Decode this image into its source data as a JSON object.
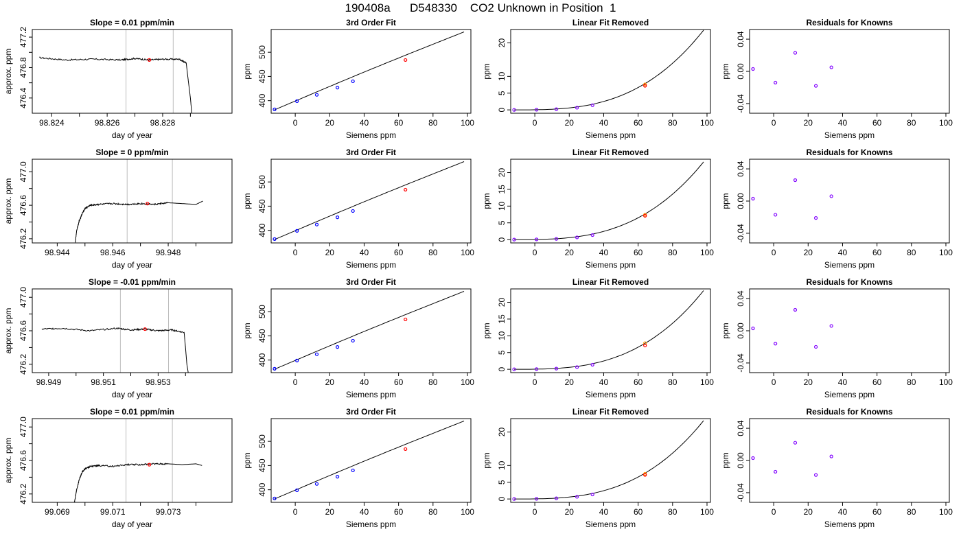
{
  "page": {
    "title": "190408a      D548330    CO2 Unknown in Position  1"
  },
  "colors": {
    "trace": "#000000",
    "marker_red": "#ff0000",
    "marker_orange": "#ff9900",
    "known_points": "#0000ff",
    "residual_points": "#8000ff",
    "window_lines": "#bbbbbb"
  },
  "chart_data": [
    {
      "type": "line",
      "row": 1,
      "title": "Slope =  0.01  ppm/min",
      "xlabel": "day of year",
      "ylabel": "approx. ppm",
      "xlim": [
        98.8233,
        98.8305
      ],
      "ylim": [
        476.2,
        477.3
      ],
      "xticks": [
        98.824,
        98.825,
        98.826,
        98.827,
        98.828,
        98.829
      ],
      "xtick_labels": [
        "98.824",
        "",
        "98.826",
        "",
        "98.828",
        ""
      ],
      "yticks": [
        476.4,
        476.6,
        476.8,
        477.0,
        477.2
      ],
      "ytick_labels": [
        "476.4",
        "",
        "476.8",
        "",
        "477.2"
      ],
      "vlines": [
        98.82668,
        98.82838
      ],
      "series": [
        {
          "x": [
            98.82355,
            98.8245,
            98.8255,
            98.8265,
            98.827,
            98.8275,
            98.828,
            98.8286,
            98.82885,
            98.8289,
            98.829,
            98.8291
          ],
          "y": [
            476.93,
            476.9,
            476.91,
            476.9,
            476.92,
            476.9,
            476.91,
            476.91,
            476.86,
            476.7,
            476.4,
            476.0
          ]
        }
      ],
      "marker": {
        "x": 98.82752,
        "y": 476.9
      }
    },
    {
      "type": "line",
      "row": 1,
      "title": "3rd Order Fit",
      "xlabel": "Siemens ppm",
      "ylabel": "ppm",
      "xlim": [
        -14,
        102
      ],
      "ylim": [
        374,
        547
      ],
      "xticks": [
        0,
        20,
        40,
        60,
        80,
        100
      ],
      "xtick_labels": [
        "0",
        "20",
        "40",
        "60",
        "80",
        "100"
      ],
      "yticks": [
        400,
        450,
        500
      ],
      "ytick_labels": [
        "400",
        "450",
        "500"
      ],
      "fit": {
        "x0": -12,
        "x1": 98,
        "y0": 381,
        "y1": 542,
        "bend": 0.012
      },
      "knowns": {
        "x": [
          -12,
          1,
          12.5,
          24.5,
          33.5
        ],
        "y": [
          382,
          399,
          412,
          427,
          440
        ]
      },
      "unknown": {
        "x": 64,
        "y": 484
      }
    },
    {
      "type": "line",
      "row": 1,
      "title": "Linear Fit Removed",
      "xlabel": "Siemens ppm",
      "ylabel": "ppm",
      "xlim": [
        -14,
        102
      ],
      "ylim": [
        -1,
        24
      ],
      "xticks": [
        0,
        20,
        40,
        60,
        80,
        100
      ],
      "xtick_labels": [
        "0",
        "20",
        "40",
        "60",
        "80",
        "100"
      ],
      "yticks": [
        0,
        5,
        10,
        20
      ],
      "ytick_labels": [
        "0",
        "5",
        "10",
        "20"
      ],
      "fit": {
        "x0": -12,
        "x1": 98,
        "ymax": 23.8
      },
      "knowns": {
        "x": [
          -12,
          1,
          12.5,
          24.5,
          33.5
        ],
        "y": [
          0.0,
          0.05,
          0.2,
          0.65,
          1.4
        ]
      },
      "unknown": {
        "x": 64,
        "y": [
          7.2,
          7.6
        ]
      }
    },
    {
      "type": "scatter",
      "row": 1,
      "title": "Residuals for Knowns",
      "xlabel": "Siemens ppm",
      "ylabel": "ppm",
      "xlim": [
        -14,
        102
      ],
      "ylim": [
        -0.052,
        0.052
      ],
      "xticks": [
        0,
        20,
        40,
        60,
        80,
        100
      ],
      "xtick_labels": [
        "0",
        "20",
        "40",
        "60",
        "80",
        "100"
      ],
      "yticks": [
        -0.04,
        0.0,
        0.04
      ],
      "ytick_labels": [
        "-0.04",
        "0.00",
        "0.04"
      ],
      "points": {
        "x": [
          -12,
          1,
          12.5,
          24.5,
          33.5
        ],
        "y": [
          0.003,
          -0.014,
          0.023,
          -0.018,
          0.005
        ]
      }
    },
    {
      "type": "line",
      "row": 2,
      "title": "Slope =  0  ppm/min",
      "xlabel": "day of year",
      "ylabel": "approx. ppm",
      "xlim": [
        98.9431,
        98.9503
      ],
      "ylim": [
        476.15,
        477.15
      ],
      "xticks": [
        98.944,
        98.945,
        98.946,
        98.947,
        98.948,
        98.949
      ],
      "xtick_labels": [
        "98.944",
        "",
        "98.946",
        "",
        "98.948",
        ""
      ],
      "yticks": [
        476.2,
        476.4,
        476.6,
        476.8,
        477.0
      ],
      "ytick_labels": [
        "476.2",
        "",
        "476.6",
        "",
        "477.0"
      ],
      "vlines": [
        98.94652,
        98.94815
      ],
      "series": [
        {
          "x": [
            98.94465,
            98.9447,
            98.9448,
            98.9449,
            98.945,
            98.9452,
            98.9455,
            98.946,
            98.9465,
            98.947,
            98.9475,
            98.948,
            98.9485,
            98.949,
            98.94925
          ],
          "y": [
            476.15,
            476.3,
            476.42,
            476.5,
            476.56,
            476.6,
            476.61,
            476.62,
            476.61,
            476.62,
            476.61,
            476.63,
            476.62,
            476.61,
            476.65
          ]
        }
      ],
      "marker": {
        "x": 98.94725,
        "y": 476.62
      }
    },
    {
      "type": "line",
      "row": 2,
      "title": "3rd Order Fit",
      "xlabel": "Siemens ppm",
      "ylabel": "ppm",
      "xlim": [
        -14,
        102
      ],
      "ylim": [
        374,
        547
      ],
      "xticks": [
        0,
        20,
        40,
        60,
        80,
        100
      ],
      "xtick_labels": [
        "0",
        "20",
        "40",
        "60",
        "80",
        "100"
      ],
      "yticks": [
        400,
        450,
        500
      ],
      "ytick_labels": [
        "400",
        "450",
        "500"
      ],
      "fit": {
        "x0": -12,
        "x1": 98,
        "y0": 381,
        "y1": 542,
        "bend": 0.012
      },
      "knowns": {
        "x": [
          -12,
          1,
          12.5,
          24.5,
          33.5
        ],
        "y": [
          382,
          399,
          412,
          427,
          440
        ]
      },
      "unknown": {
        "x": 64,
        "y": 484
      }
    },
    {
      "type": "line",
      "row": 2,
      "title": "Linear Fit Removed",
      "xlabel": "Siemens ppm",
      "ylabel": "ppm",
      "xlim": [
        -14,
        102
      ],
      "ylim": [
        -1,
        24
      ],
      "xticks": [
        0,
        20,
        40,
        60,
        80,
        100
      ],
      "xtick_labels": [
        "0",
        "20",
        "40",
        "60",
        "80",
        "100"
      ],
      "yticks": [
        0,
        5,
        10,
        15,
        20
      ],
      "ytick_labels": [
        "0",
        "5",
        "10",
        "15",
        "20"
      ],
      "fit": {
        "x0": -12,
        "x1": 98,
        "ymax": 23.2
      },
      "knowns": {
        "x": [
          -12,
          1,
          12.5,
          24.5,
          33.5
        ],
        "y": [
          0.0,
          0.05,
          0.2,
          0.65,
          1.35
        ]
      },
      "unknown": {
        "x": 64,
        "y": [
          7.1,
          7.4
        ]
      }
    },
    {
      "type": "scatter",
      "row": 2,
      "title": "Residuals for Knowns",
      "xlabel": "Siemens ppm",
      "ylabel": "ppm",
      "xlim": [
        -14,
        102
      ],
      "ylim": [
        -0.052,
        0.052
      ],
      "xticks": [
        0,
        20,
        40,
        60,
        80,
        100
      ],
      "xtick_labels": [
        "0",
        "20",
        "40",
        "60",
        "80",
        "100"
      ],
      "yticks": [
        -0.04,
        0.0,
        0.04
      ],
      "ytick_labels": [
        "-0.04",
        "0.00",
        "0.04"
      ],
      "points": {
        "x": [
          -12,
          1,
          12.5,
          24.5,
          33.5
        ],
        "y": [
          0.003,
          -0.017,
          0.026,
          -0.021,
          0.006
        ]
      }
    },
    {
      "type": "line",
      "row": 3,
      "title": "Slope =  -0.01  ppm/min",
      "xlabel": "day of year",
      "ylabel": "approx. ppm",
      "xlim": [
        98.9484,
        98.9557
      ],
      "ylim": [
        476.1,
        477.1
      ],
      "xticks": [
        98.949,
        98.95,
        98.951,
        98.952,
        98.953,
        98.954
      ],
      "xtick_labels": [
        "98.949",
        "",
        "98.951",
        "",
        "98.953",
        ""
      ],
      "yticks": [
        476.2,
        476.4,
        476.6,
        476.8,
        477.0
      ],
      "ytick_labels": [
        "476.2",
        "",
        "476.6",
        "",
        "477.0"
      ],
      "vlines": [
        98.95162,
        98.95338
      ],
      "series": [
        {
          "x": [
            98.94875,
            98.9495,
            98.9505,
            98.9515,
            98.952,
            98.9525,
            98.953,
            98.9535,
            98.95395,
            98.954,
            98.95405,
            98.9541
          ],
          "y": [
            476.62,
            476.63,
            476.6,
            476.63,
            476.61,
            476.62,
            476.6,
            476.61,
            476.58,
            476.4,
            476.2,
            476.1
          ]
        }
      ],
      "marker": {
        "x": 98.95252,
        "y": 476.62
      }
    },
    {
      "type": "line",
      "row": 3,
      "title": "3rd Order Fit",
      "xlabel": "Siemens ppm",
      "ylabel": "ppm",
      "xlim": [
        -14,
        102
      ],
      "ylim": [
        374,
        547
      ],
      "xticks": [
        0,
        20,
        40,
        60,
        80,
        100
      ],
      "xtick_labels": [
        "0",
        "20",
        "40",
        "60",
        "80",
        "100"
      ],
      "yticks": [
        400,
        450,
        500
      ],
      "ytick_labels": [
        "400",
        "450",
        "500"
      ],
      "fit": {
        "x0": -12,
        "x1": 98,
        "y0": 381,
        "y1": 542,
        "bend": 0.012
      },
      "knowns": {
        "x": [
          -12,
          1,
          12.5,
          24.5,
          33.5
        ],
        "y": [
          382,
          399,
          412,
          427,
          440
        ]
      },
      "unknown": {
        "x": 64,
        "y": 484
      }
    },
    {
      "type": "line",
      "row": 3,
      "title": "Linear Fit Removed",
      "xlabel": "Siemens ppm",
      "ylabel": "ppm",
      "xlim": [
        -14,
        102
      ],
      "ylim": [
        -1,
        24
      ],
      "xticks": [
        0,
        20,
        40,
        60,
        80,
        100
      ],
      "xtick_labels": [
        "0",
        "20",
        "40",
        "60",
        "80",
        "100"
      ],
      "yticks": [
        0,
        5,
        10,
        15,
        20
      ],
      "ytick_labels": [
        "0",
        "5",
        "10",
        "15",
        "20"
      ],
      "fit": {
        "x0": -12,
        "x1": 98,
        "ymax": 23.5
      },
      "knowns": {
        "x": [
          -12,
          1,
          12.5,
          24.5,
          33.5
        ],
        "y": [
          0.0,
          0.05,
          0.2,
          0.65,
          1.35
        ]
      },
      "unknown": {
        "x": 64,
        "y": [
          7.1,
          7.8
        ]
      }
    },
    {
      "type": "scatter",
      "row": 3,
      "title": "Residuals for Knowns",
      "xlabel": "Siemens ppm",
      "ylabel": "ppm",
      "xlim": [
        -14,
        102
      ],
      "ylim": [
        -0.052,
        0.052
      ],
      "xticks": [
        0,
        20,
        40,
        60,
        80,
        100
      ],
      "xtick_labels": [
        "0",
        "20",
        "40",
        "60",
        "80",
        "100"
      ],
      "yticks": [
        -0.04,
        0.0,
        0.04
      ],
      "ytick_labels": [
        "-0.04",
        "0.00",
        "0.04"
      ],
      "points": {
        "x": [
          -12,
          1,
          12.5,
          24.5,
          33.5
        ],
        "y": [
          0.003,
          -0.016,
          0.026,
          -0.02,
          0.006
        ]
      }
    },
    {
      "type": "line",
      "row": 4,
      "title": "Slope =  0.01  ppm/min",
      "xlabel": "day of year",
      "ylabel": "approx. ppm",
      "xlim": [
        99.0681,
        99.0753
      ],
      "ylim": [
        476.1,
        477.1
      ],
      "xticks": [
        99.069,
        99.07,
        99.071,
        99.072,
        99.073,
        99.074
      ],
      "xtick_labels": [
        "99.069",
        "",
        "99.071",
        "",
        "99.073",
        ""
      ],
      "yticks": [
        476.2,
        476.4,
        476.6,
        476.8,
        477.0
      ],
      "ytick_labels": [
        "476.2",
        "",
        "476.6",
        "",
        "477.0"
      ],
      "vlines": [
        99.07148,
        99.07315
      ],
      "series": [
        {
          "x": [
            99.06962,
            99.0697,
            99.0698,
            99.0699,
            99.07,
            99.0702,
            99.0705,
            99.071,
            99.0715,
            99.072,
            99.0725,
            99.073,
            99.0735,
            99.074,
            99.07422
          ],
          "y": [
            476.1,
            476.25,
            476.38,
            476.46,
            476.5,
            476.53,
            476.54,
            476.53,
            476.55,
            476.55,
            476.56,
            476.56,
            476.55,
            476.56,
            476.54
          ]
        }
      ],
      "marker": {
        "x": 99.07232,
        "y": 476.55
      }
    },
    {
      "type": "line",
      "row": 4,
      "title": "3rd Order Fit",
      "xlabel": "Siemens ppm",
      "ylabel": "ppm",
      "xlim": [
        -14,
        102
      ],
      "ylim": [
        374,
        547
      ],
      "xticks": [
        0,
        20,
        40,
        60,
        80,
        100
      ],
      "xtick_labels": [
        "0",
        "20",
        "40",
        "60",
        "80",
        "100"
      ],
      "yticks": [
        400,
        450,
        500
      ],
      "ytick_labels": [
        "400",
        "450",
        "500"
      ],
      "fit": {
        "x0": -12,
        "x1": 98,
        "y0": 381,
        "y1": 542,
        "bend": 0.012
      },
      "knowns": {
        "x": [
          -12,
          1,
          12.5,
          24.5,
          33.5
        ],
        "y": [
          382,
          399,
          412,
          427,
          440
        ]
      },
      "unknown": {
        "x": 64,
        "y": 484
      }
    },
    {
      "type": "line",
      "row": 4,
      "title": "Linear Fit Removed",
      "xlabel": "Siemens ppm",
      "ylabel": "ppm",
      "xlim": [
        -14,
        102
      ],
      "ylim": [
        -1,
        24
      ],
      "xticks": [
        0,
        20,
        40,
        60,
        80,
        100
      ],
      "xtick_labels": [
        "0",
        "20",
        "40",
        "60",
        "80",
        "100"
      ],
      "yticks": [
        0,
        5,
        10,
        20
      ],
      "ytick_labels": [
        "0",
        "5",
        "10",
        "20"
      ],
      "fit": {
        "x0": -12,
        "x1": 98,
        "ymax": 23.4
      },
      "knowns": {
        "x": [
          -12,
          1,
          12.5,
          24.5,
          33.5
        ],
        "y": [
          0.0,
          0.05,
          0.2,
          0.65,
          1.35
        ]
      },
      "unknown": {
        "x": 64,
        "y": [
          7.2,
          7.5
        ]
      }
    },
    {
      "type": "scatter",
      "row": 4,
      "title": "Residuals for Knowns",
      "xlabel": "Siemens ppm",
      "ylabel": "ppm",
      "xlim": [
        -14,
        102
      ],
      "ylim": [
        -0.052,
        0.052
      ],
      "xticks": [
        0,
        20,
        40,
        60,
        80,
        100
      ],
      "xtick_labels": [
        "0",
        "20",
        "40",
        "60",
        "80",
        "100"
      ],
      "yticks": [
        -0.04,
        0.0,
        0.04
      ],
      "ytick_labels": [
        "-0.04",
        "0.00",
        "0.04"
      ],
      "points": {
        "x": [
          -12,
          1,
          12.5,
          24.5,
          33.5
        ],
        "y": [
          0.003,
          -0.014,
          0.022,
          -0.018,
          0.005
        ]
      }
    }
  ]
}
